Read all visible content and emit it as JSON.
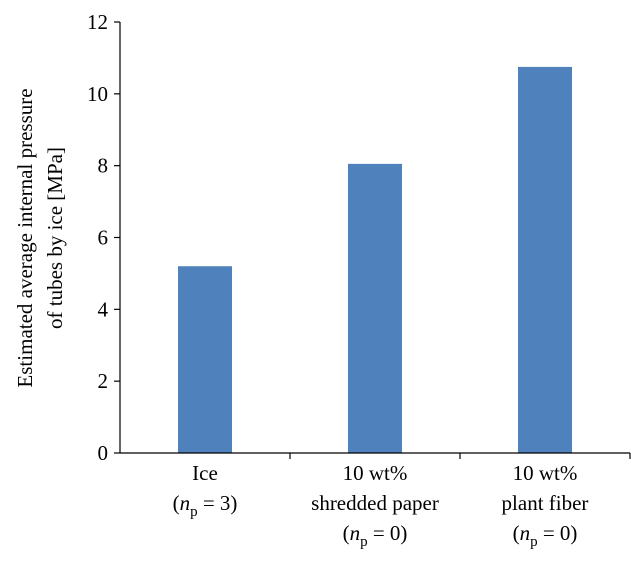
{
  "chart_data": {
    "type": "bar",
    "categories": [
      [
        "Ice",
        "(n_p = 3)"
      ],
      [
        "10 wt%",
        "shredded paper",
        "(n_p = 0)"
      ],
      [
        "10 wt%",
        "plant fiber",
        "(n_p = 0)"
      ]
    ],
    "values": [
      5.2,
      8.05,
      10.75
    ],
    "ylabel": [
      "Estimated average internal pressure",
      "of tubes by ice [MPa]"
    ],
    "xlabel": "",
    "title": "",
    "ylim": [
      0,
      12
    ],
    "yticks": [
      0,
      2,
      4,
      6,
      8,
      10,
      12
    ],
    "grid": false,
    "bar_color": "#4f81bd"
  }
}
